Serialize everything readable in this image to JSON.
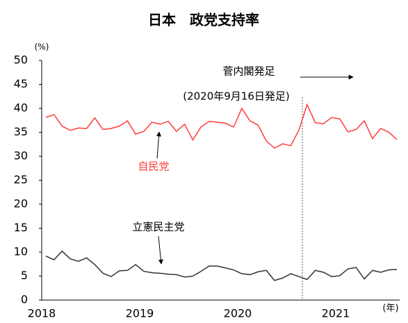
{
  "chart_data": {
    "type": "line",
    "title": "日本　政党支持率",
    "y_unit": "(%)",
    "x_unit": "(年)",
    "categories": [
      "2018",
      null,
      null,
      null,
      null,
      null,
      null,
      null,
      null,
      null,
      null,
      null,
      "2019",
      null,
      null,
      null,
      null,
      null,
      null,
      null,
      null,
      null,
      null,
      null,
      "2020",
      null,
      null,
      null,
      null,
      null,
      null,
      null,
      null,
      null,
      null,
      null,
      "2021",
      null,
      null,
      null,
      null,
      null,
      null,
      null
    ],
    "series": [
      {
        "name": "自民党",
        "color": "#ff3b3b",
        "values": [
          38.1,
          38.7,
          36.3,
          35.4,
          35.9,
          35.8,
          38.0,
          35.6,
          35.8,
          36.3,
          37.4,
          34.6,
          35.2,
          37.1,
          36.7,
          37.3,
          35.2,
          36.7,
          33.4,
          36.1,
          37.3,
          37.1,
          36.9,
          36.1,
          40.0,
          37.4,
          36.5,
          33.2,
          31.7,
          32.6,
          32.2,
          35.5,
          40.8,
          37.0,
          36.8,
          38.1,
          37.8,
          35.1,
          35.6,
          37.4,
          33.7,
          35.8,
          35.0,
          33.5
        ]
      },
      {
        "name": "立憲民主党",
        "color": "#333333",
        "values": [
          9.2,
          8.4,
          10.2,
          8.6,
          8.1,
          8.8,
          7.4,
          5.6,
          4.9,
          6.1,
          6.2,
          7.4,
          6.0,
          5.7,
          5.6,
          5.4,
          5.3,
          4.8,
          5.0,
          6.0,
          7.1,
          7.1,
          6.7,
          6.3,
          5.5,
          5.3,
          5.9,
          6.2,
          4.1,
          4.6,
          5.5,
          4.9,
          4.3,
          6.2,
          5.8,
          4.9,
          5.1,
          6.5,
          6.8,
          4.4,
          6.2,
          5.8,
          6.3,
          6.4
        ]
      }
    ],
    "annotations": [
      "菅内閣発足",
      "(2020年9月16日発足)"
    ],
    "ylim": [
      0,
      50
    ],
    "yticks": [
      0,
      5,
      10,
      15,
      20,
      25,
      30,
      35,
      40,
      45,
      50
    ]
  }
}
